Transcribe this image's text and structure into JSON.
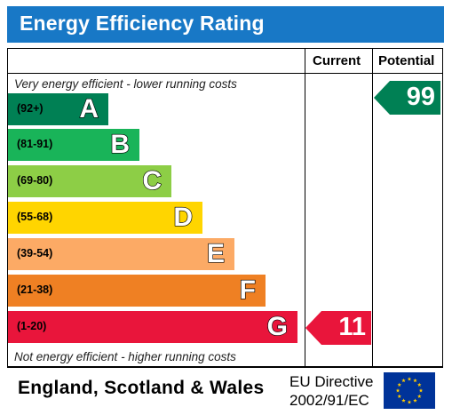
{
  "title": "Energy Efficiency Rating",
  "columns": {
    "current": "Current",
    "potential": "Potential"
  },
  "notes": {
    "top": "Very energy efficient - lower running costs",
    "bottom": "Not energy efficient - higher running costs"
  },
  "bands": [
    {
      "range": "(92+)",
      "letter": "A",
      "color": "#008054"
    },
    {
      "range": "(81-91)",
      "letter": "B",
      "color": "#19b459"
    },
    {
      "range": "(69-80)",
      "letter": "C",
      "color": "#8dce46"
    },
    {
      "range": "(55-68)",
      "letter": "D",
      "color": "#ffd500"
    },
    {
      "range": "(39-54)",
      "letter": "E",
      "color": "#fcaa65"
    },
    {
      "range": "(21-38)",
      "letter": "F",
      "color": "#ef8023"
    },
    {
      "range": "(1-20)",
      "letter": "G",
      "color": "#e9153b"
    }
  ],
  "current": {
    "value": "11",
    "band": "G",
    "color": "#e9153b"
  },
  "potential": {
    "value": "99",
    "band": "A",
    "color": "#008054"
  },
  "footer": {
    "region": "England, Scotland & Wales",
    "directive_line1": "EU Directive",
    "directive_line2": "2002/91/EC"
  },
  "flag": {
    "icon": "eu-flag-icon",
    "background": "#003399",
    "stars": "#ffcc00"
  }
}
